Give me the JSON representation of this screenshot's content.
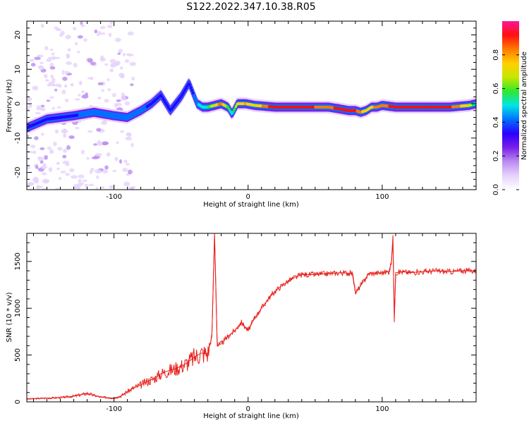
{
  "figure": {
    "title": "S122.2022.347.10.38.R05"
  },
  "colors": {
    "frame": "#000000",
    "snr_line": "#e8201c",
    "colormap": [
      "#ffffff",
      "#e6d2fb",
      "#b98cf0",
      "#7a1ee8",
      "#2b00ff",
      "#0070ff",
      "#00e6e6",
      "#2ee82e",
      "#c8e600",
      "#ffd000",
      "#ff7a00",
      "#ff1010",
      "#ff1493"
    ]
  },
  "chart_data": [
    {
      "type": "heatmap",
      "title": "",
      "xlabel": "Height of straight line (km)",
      "ylabel": "Frequency (Hz)",
      "xlim": [
        -165,
        170
      ],
      "ylim": [
        -25,
        24
      ],
      "xticks": [
        -100,
        0,
        100
      ],
      "yticks": [
        -20,
        -10,
        0,
        10,
        20
      ],
      "colorbar": {
        "label": "Normalized spectral amplitude",
        "range": [
          0.0,
          1.0
        ],
        "ticks": [
          0.0,
          0.2,
          0.4,
          0.6,
          0.8
        ]
      },
      "ridge": {
        "description_values_only": true,
        "x": [
          -165,
          -150,
          -130,
          -115,
          -100,
          -90,
          -80,
          -72,
          -65,
          -58,
          -50,
          -44,
          -38,
          -34,
          -30,
          -25,
          -20,
          -15,
          -12,
          -8,
          -2,
          5,
          20,
          40,
          60,
          68,
          75,
          80,
          84,
          88,
          92,
          96,
          100,
          110,
          130,
          150,
          165,
          170
        ],
        "freq": [
          -7,
          -4.5,
          -3.5,
          -2.5,
          -3.5,
          -4,
          -2,
          0,
          2.5,
          -2,
          2,
          6,
          0,
          -1,
          -1,
          -0.5,
          0,
          -1,
          -3,
          0,
          0,
          -0.5,
          -1,
          -1,
          -1,
          -1.5,
          -2,
          -2,
          -2.5,
          -2,
          -1,
          -1,
          -0.5,
          -1,
          -1,
          -1,
          -0.5,
          0
        ],
        "amplitude": [
          0.3,
          0.35,
          0.35,
          0.45,
          0.4,
          0.4,
          0.4,
          0.35,
          0.3,
          0.35,
          0.3,
          0.3,
          0.45,
          0.5,
          0.55,
          0.7,
          0.85,
          0.6,
          0.5,
          0.7,
          0.8,
          0.7,
          0.95,
          0.9,
          0.85,
          0.9,
          0.95,
          0.9,
          0.8,
          0.75,
          0.75,
          0.85,
          0.8,
          0.95,
          0.95,
          0.9,
          0.7,
          0.5
        ]
      }
    },
    {
      "type": "line",
      "title": "",
      "xlabel": "Height of straight line (km)",
      "ylabel": "SNR (10 * v/v)",
      "xlim": [
        -165,
        170
      ],
      "ylim": [
        0,
        1800
      ],
      "xticks": [
        -100,
        0,
        100
      ],
      "yticks": [
        0,
        500,
        1000,
        1500
      ],
      "series": [
        {
          "x": [
            -165,
            -150,
            -140,
            -130,
            -120,
            -115,
            -110,
            -100,
            -95,
            -90,
            -85,
            -80,
            -75,
            -70,
            -65,
            -60,
            -55,
            -50,
            -45,
            -40,
            -35,
            -30,
            -27,
            -25,
            -23,
            -20,
            -15,
            -10,
            -5,
            0,
            5,
            10,
            15,
            20,
            25,
            30,
            35,
            40,
            50,
            60,
            70,
            78,
            80,
            90,
            100,
            105,
            107,
            108,
            109,
            110,
            115,
            120,
            130,
            140,
            150,
            160,
            170
          ],
          "y": [
            30,
            40,
            45,
            60,
            90,
            70,
            50,
            40,
            60,
            110,
            150,
            180,
            220,
            250,
            300,
            330,
            350,
            380,
            420,
            480,
            520,
            520,
            700,
            1800,
            600,
            620,
            700,
            760,
            850,
            760,
            900,
            1000,
            1100,
            1180,
            1240,
            1290,
            1330,
            1360,
            1360,
            1370,
            1380,
            1370,
            1160,
            1370,
            1380,
            1390,
            1500,
            1780,
            850,
            1380,
            1390,
            1380,
            1390,
            1400,
            1390,
            1400,
            1400
          ]
        }
      ]
    }
  ]
}
